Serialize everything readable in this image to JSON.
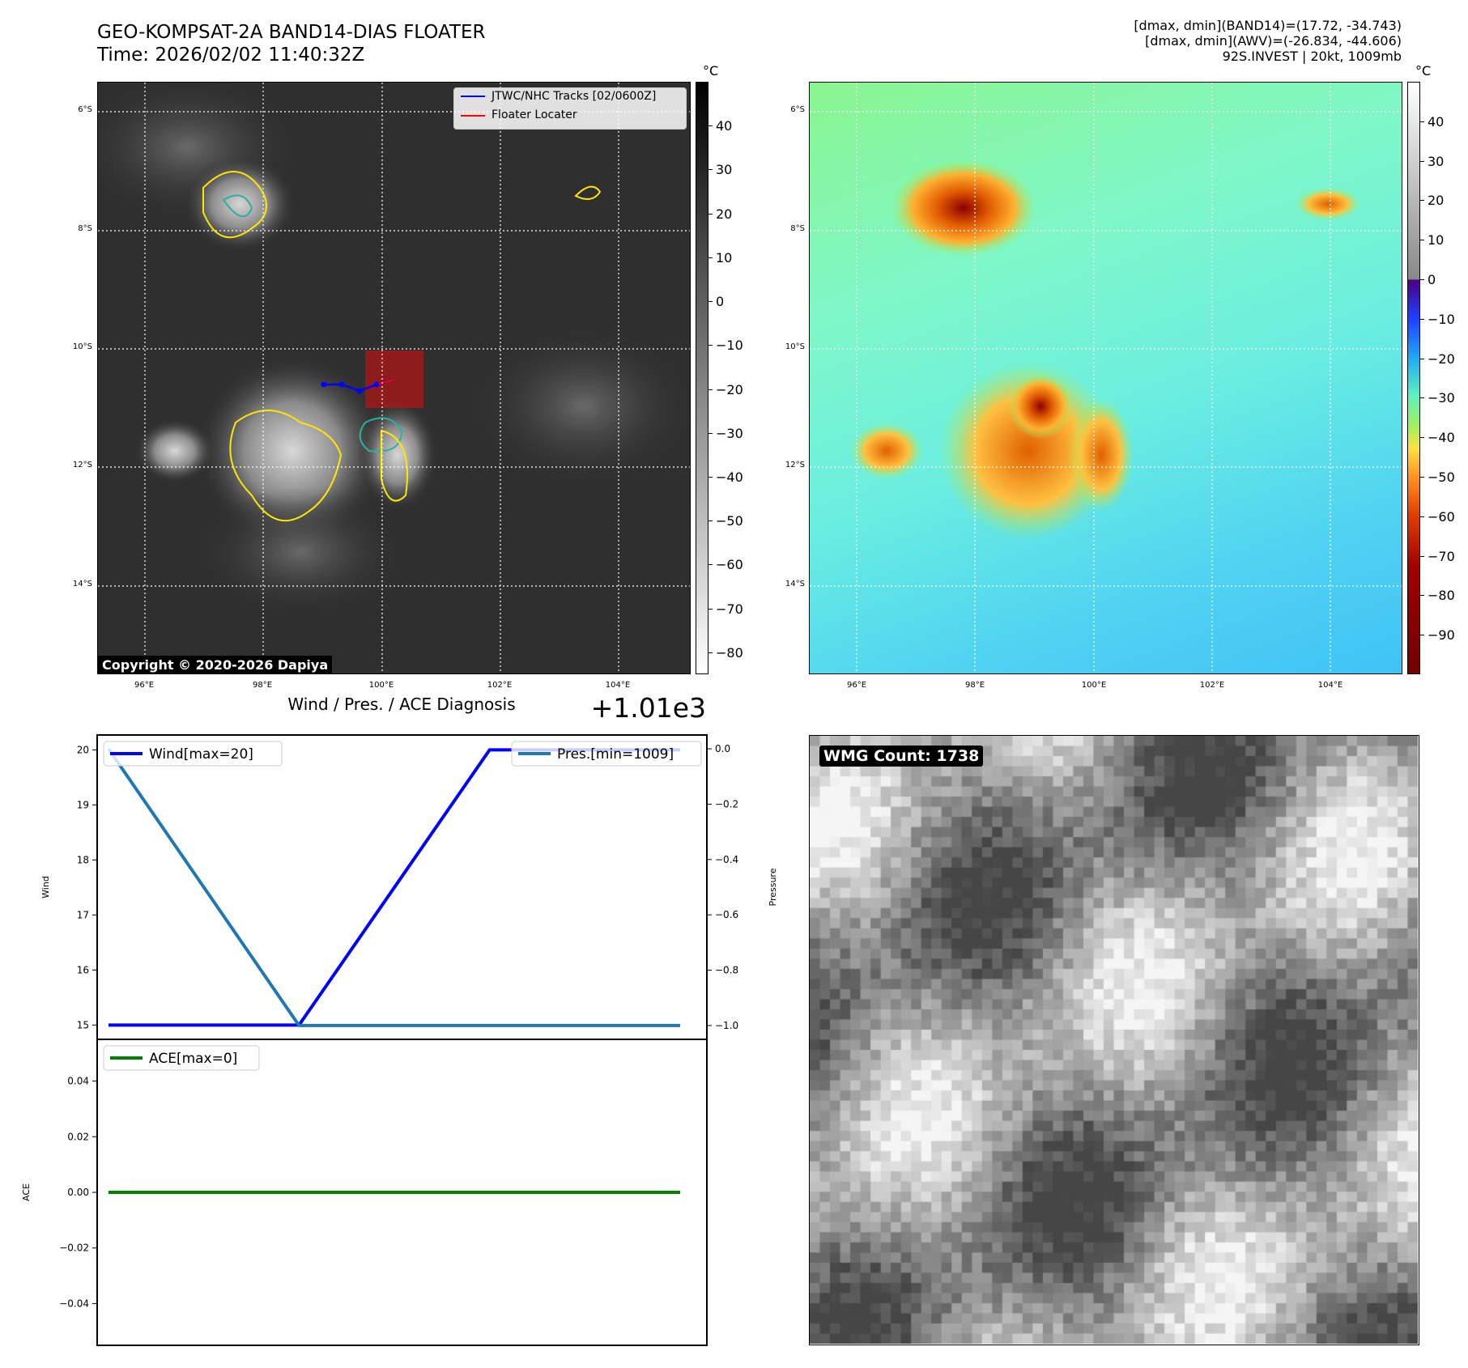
{
  "header": {
    "title_line1": "GEO-KOMPSAT-2A BAND14-DIAS FLOATER",
    "title_line2": "Time: 2026/02/02 11:40:32Z"
  },
  "info": {
    "line1": "[dmax, dmin](BAND14)=(17.72, -34.743)",
    "line2": "[dmax, dmin](AWV)=(-26.834, -44.606)",
    "line3": "92S.INVEST | 20kt, 1009mb"
  },
  "maps": {
    "lat_labels": [
      "6°S",
      "8°S",
      "10°S",
      "12°S",
      "14°S"
    ],
    "lon_labels": [
      "96°E",
      "98°E",
      "100°E",
      "102°E",
      "104°E"
    ],
    "legend": {
      "track": "JTWC/NHC Tracks [02/0600Z]",
      "floater": "Floater Locater"
    },
    "copyright": "Copyright © 2020-2026 Dapiya",
    "colorbar_left": {
      "unit": "°C",
      "ticks": [
        "40",
        "30",
        "20",
        "10",
        "0",
        "−10",
        "−20",
        "−30",
        "−40",
        "−50",
        "−60",
        "−70",
        "−80"
      ],
      "range": [
        -85,
        50
      ]
    },
    "colorbar_right": {
      "unit": "°C",
      "ticks": [
        "40",
        "30",
        "20",
        "10",
        "0",
        "−10",
        "−20",
        "−30",
        "−40",
        "−50",
        "−60",
        "−70",
        "−80",
        "−90"
      ],
      "range": [
        -100,
        50
      ]
    },
    "colors": {
      "track": "#0000ff",
      "floater": "#ff0000"
    }
  },
  "wmg": {
    "label": "WMG Count: 1738"
  },
  "chart_data": [
    {
      "type": "line",
      "title": "Wind / Pres. / ACE Diagnosis",
      "offset_label": "+1.01e3",
      "x": [
        0,
        1,
        2,
        3
      ],
      "ylabel": "Wind",
      "y2label": "Pressure",
      "ylim": [
        14.74,
        20.27
      ],
      "yticks": [
        "20",
        "19",
        "18",
        "17",
        "16",
        "15"
      ],
      "y2ticks": [
        "0.0",
        "−0.2",
        "−0.4",
        "−0.6",
        "−0.8",
        "−1.0"
      ],
      "y2lim": [
        -1.05,
        0.05
      ],
      "series": [
        {
          "name": "Wind[max=20]",
          "color": "#0000ff",
          "values": [
            15,
            15,
            20,
            20
          ]
        },
        {
          "name": "Pres.[min=1009]",
          "color": "#1f77b4",
          "values": [
            1010,
            1009,
            1009,
            1009
          ]
        }
      ]
    },
    {
      "type": "line",
      "x": [
        0,
        1,
        2,
        3
      ],
      "ylabel": "ACE",
      "ylim": [
        -0.055,
        0.055
      ],
      "yticks": [
        "0.04",
        "0.02",
        "0.00",
        "−0.02",
        "−0.04"
      ],
      "series": [
        {
          "name": "ACE[max=0]",
          "color": "#008000",
          "values": [
            0,
            0,
            0,
            0
          ]
        }
      ]
    }
  ]
}
